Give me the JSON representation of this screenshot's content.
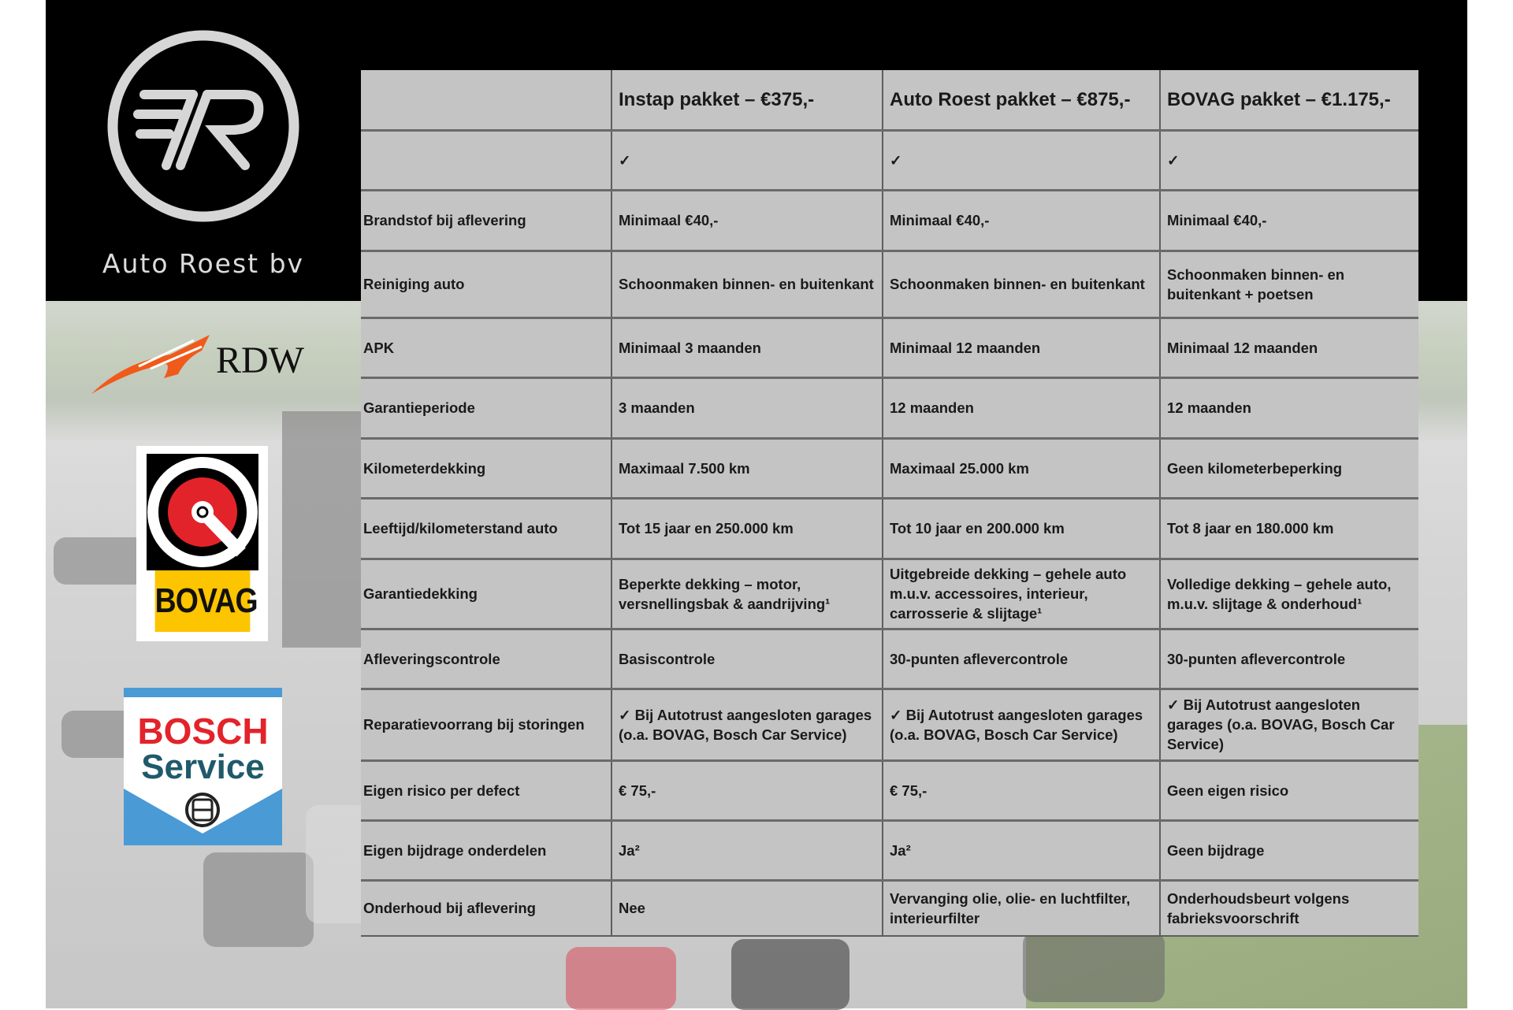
{
  "brand": {
    "name": "Auto Roest bv",
    "logo_monogram": "AR"
  },
  "logos": {
    "rdw": {
      "text": "RDW",
      "color": "#f05a1a"
    },
    "bovag": {
      "text": "BOVAG",
      "colors": {
        "red": "#e3232a",
        "yellow": "#fdc400"
      }
    },
    "bosch": {
      "line1": "BOSCH",
      "line2": "Service",
      "colors": {
        "red": "#e3232a",
        "teal": "#1f5a6b",
        "blue": "#4a9ad6"
      }
    }
  },
  "table": {
    "headers": [
      "",
      "Instap pakket – €375,-",
      "Auto Roest pakket – €875,-",
      "BOVAG pakket – €1.175,-"
    ],
    "rows": [
      {
        "label": "",
        "values": [
          "✓",
          "✓",
          "✓"
        ]
      },
      {
        "label": "Brandstof bij aflevering",
        "values": [
          "Minimaal €40,-",
          "Minimaal €40,-",
          "Minimaal €40,-"
        ]
      },
      {
        "label": "Reiniging auto",
        "values": [
          "Schoonmaken binnen- en buitenkant",
          "Schoonmaken binnen- en buitenkant",
          "Schoonmaken binnen- en buitenkant + poetsen"
        ]
      },
      {
        "label": "APK",
        "values": [
          "Minimaal 3 maanden",
          "Minimaal 12 maanden",
          "Minimaal 12 maanden"
        ]
      },
      {
        "label": "Garantieperiode",
        "values": [
          "3 maanden",
          "12 maanden",
          "12 maanden"
        ]
      },
      {
        "label": "Kilometerdekking",
        "values": [
          "Maximaal 7.500 km",
          "Maximaal 25.000 km",
          "Geen kilometerbeperking"
        ]
      },
      {
        "label": "Leeftijd/kilometerstand auto",
        "values": [
          "Tot 15 jaar en 250.000 km",
          "Tot 10 jaar en 200.000 km",
          "Tot 8 jaar en 180.000 km"
        ]
      },
      {
        "label": "Garantiedekking",
        "values": [
          "Beperkte dekking – motor, versnellingsbak & aandrijving¹",
          "Uitgebreide dekking – gehele auto m.u.v. accessoires, interieur, carrosserie & slijtage¹",
          "Volledige dekking – gehele auto, m.u.v. slijtage & onderhoud¹"
        ]
      },
      {
        "label": "Afleveringscontrole",
        "values": [
          "Basiscontrole",
          "30-punten aflevercontrole",
          "30-punten aflevercontrole"
        ]
      },
      {
        "label": "Reparatievoorrang bij storingen",
        "values": [
          "✓ Bij Autotrust aangesloten garages (o.a. BOVAG, Bosch Car Service)",
          "✓ Bij Autotrust aangesloten garages (o.a. BOVAG, Bosch Car Service)",
          "✓ Bij Autotrust aangesloten garages (o.a. BOVAG, Bosch Car Service)"
        ]
      },
      {
        "label": "Eigen risico per defect",
        "values": [
          "€ 75,-",
          "€ 75,-",
          "Geen eigen risico"
        ]
      },
      {
        "label": "Eigen bijdrage onderdelen",
        "values": [
          "Ja²",
          "Ja²",
          "Geen bijdrage"
        ]
      },
      {
        "label": "Onderhoud bij aflevering",
        "values": [
          "Nee",
          "Vervanging olie, olie- en luchtfilter, interieurfilter",
          "Onderhoudsbeurt volgens fabrieksvoorschrift"
        ]
      }
    ]
  }
}
